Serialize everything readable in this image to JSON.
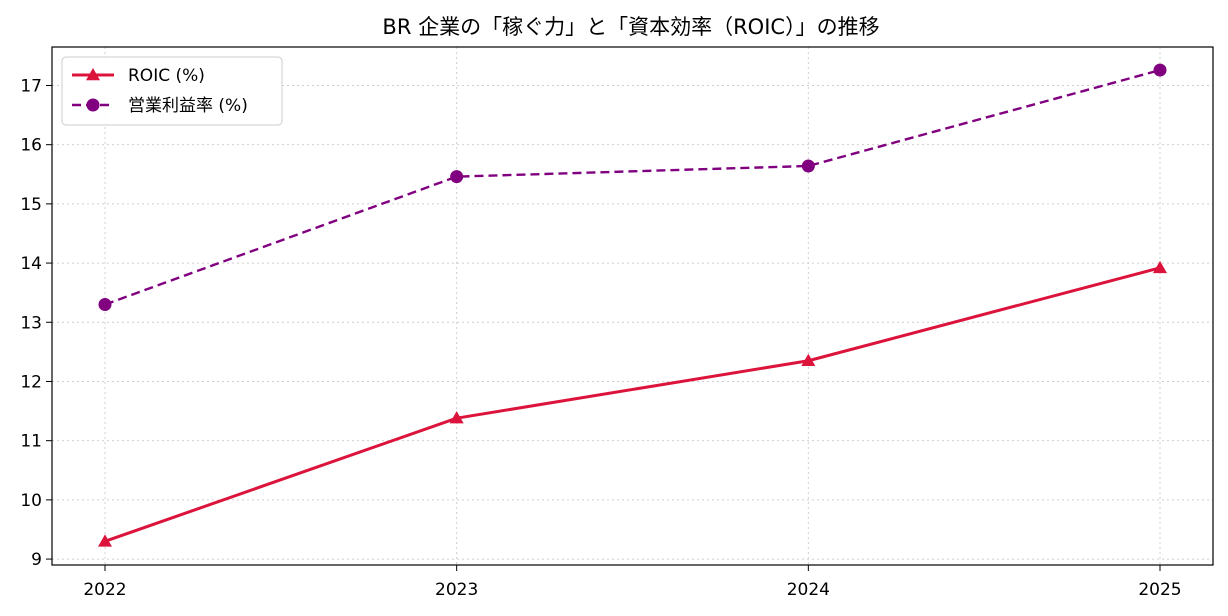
{
  "chart_data": {
    "type": "line",
    "title": "BR 企業の「稼ぐ力」と「資本効率（ROIC）」の推移",
    "xlabel": "",
    "ylabel": "",
    "categories": [
      "2022",
      "2023",
      "2024",
      "2025"
    ],
    "ylim": [
      8.9,
      17.65
    ],
    "yticks": [
      9,
      10,
      11,
      12,
      13,
      14,
      15,
      16,
      17
    ],
    "grid": true,
    "legend_position": "top-left",
    "series": [
      {
        "name": "ROIC (%)",
        "values": [
          9.3,
          11.38,
          12.35,
          13.92
        ],
        "color": "#dc143c",
        "marker": "triangle",
        "line_style": "solid"
      },
      {
        "name": "営業利益率 (%)",
        "values": [
          13.3,
          15.46,
          15.64,
          17.26
        ],
        "color": "#800080",
        "marker": "circle",
        "line_style": "dashed"
      }
    ]
  }
}
